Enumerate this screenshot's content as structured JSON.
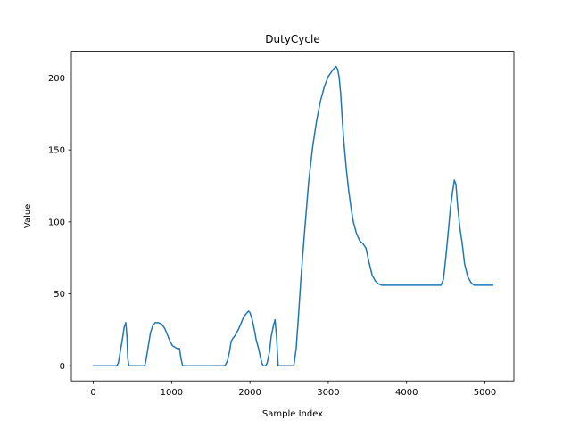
{
  "chart_data": {
    "type": "line",
    "title": "DutyCycle",
    "xlabel": "Sample Index",
    "ylabel": "Value",
    "xlim": [
      -280,
      5370
    ],
    "ylim": [
      -10.5,
      218.5
    ],
    "xticks": [
      0,
      1000,
      2000,
      3000,
      4000,
      5000
    ],
    "yticks": [
      0,
      50,
      100,
      150,
      200
    ],
    "grid": false,
    "series": [
      {
        "name": "DutyCycle",
        "color": "#1f77b4",
        "x": [
          0,
          150,
          300,
          320,
          345,
          370,
          395,
          415,
          430,
          440,
          455,
          470,
          600,
          655,
          670,
          700,
          730,
          760,
          790,
          830,
          870,
          900,
          920,
          950,
          980,
          1010,
          1040,
          1070,
          1100,
          1120,
          1140,
          1160,
          1200,
          1400,
          1600,
          1680,
          1710,
          1740,
          1760,
          1780,
          1810,
          1850,
          1890,
          1920,
          1950,
          1980,
          2000,
          2030,
          2060,
          2080,
          2110,
          2130,
          2150,
          2170,
          2200,
          2220,
          2250,
          2270,
          2300,
          2320,
          2340,
          2360,
          2400,
          2500,
          2560,
          2590,
          2620,
          2650,
          2700,
          2750,
          2800,
          2850,
          2900,
          2950,
          3000,
          3050,
          3080,
          3100,
          3120,
          3140,
          3160,
          3180,
          3200,
          3230,
          3260,
          3290,
          3320,
          3360,
          3400,
          3440,
          3480,
          3520,
          3560,
          3600,
          3640,
          3680,
          3720,
          3800,
          4000,
          4200,
          4400,
          4440,
          4470,
          4500,
          4530,
          4560,
          4590,
          4610,
          4630,
          4650,
          4680,
          4710,
          4740,
          4780,
          4820,
          4860,
          4900,
          4950,
          5000,
          5100
        ],
        "y": [
          0,
          0,
          0,
          2,
          10,
          18,
          27,
          30,
          20,
          5,
          0,
          0,
          0,
          0,
          3,
          13,
          23,
          28,
          30,
          30,
          29,
          27,
          25,
          21,
          17,
          14,
          13,
          12,
          12,
          5,
          0,
          0,
          0,
          0,
          0,
          0,
          3,
          10,
          17,
          19,
          21,
          25,
          30,
          34,
          36,
          38,
          37,
          32,
          24,
          18,
          12,
          7,
          2,
          0,
          0,
          2,
          10,
          20,
          28,
          32,
          20,
          0,
          0,
          0,
          0,
          12,
          35,
          60,
          95,
          128,
          152,
          170,
          184,
          194,
          201,
          205,
          207,
          208,
          206,
          200,
          188,
          170,
          155,
          137,
          122,
          110,
          100,
          92,
          87,
          85,
          82,
          72,
          63,
          59,
          57,
          56,
          56,
          56,
          56,
          56,
          56,
          56,
          60,
          75,
          92,
          110,
          122,
          129,
          126,
          112,
          96,
          85,
          71,
          62,
          58,
          56,
          56,
          56,
          56,
          56
        ]
      }
    ]
  }
}
